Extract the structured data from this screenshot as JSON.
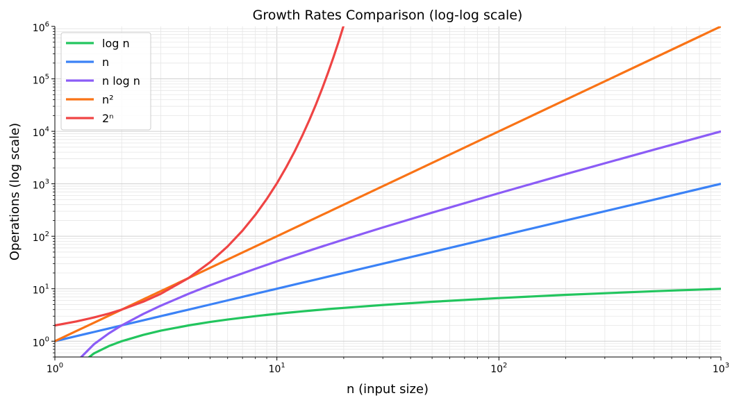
{
  "chart_data": {
    "type": "line",
    "title": "Growth Rates Comparison (log-log scale)",
    "xlabel": "n (input size)",
    "ylabel": "Operations (log scale)",
    "xscale": "log",
    "yscale": "log",
    "xlim": [
      1,
      1000
    ],
    "ylim": [
      0.5,
      1000000
    ],
    "grid": "major and minor",
    "legend_position": "top-left",
    "x_ticks": [
      {
        "base": "10",
        "exp": "0",
        "value": 1
      },
      {
        "base": "10",
        "exp": "1",
        "value": 10
      },
      {
        "base": "10",
        "exp": "2",
        "value": 100
      },
      {
        "base": "10",
        "exp": "3",
        "value": 1000
      }
    ],
    "y_ticks": [
      {
        "base": "10",
        "exp": "0",
        "value": 1
      },
      {
        "base": "10",
        "exp": "1",
        "value": 10
      },
      {
        "base": "10",
        "exp": "2",
        "value": 100
      },
      {
        "base": "10",
        "exp": "3",
        "value": 1000
      },
      {
        "base": "10",
        "exp": "4",
        "value": 10000
      },
      {
        "base": "10",
        "exp": "5",
        "value": 100000
      },
      {
        "base": "10",
        "exp": "6",
        "value": 1000000
      }
    ],
    "x": [
      1,
      1.25,
      1.5,
      1.75,
      2,
      2.5,
      3,
      4,
      5,
      6,
      7,
      8,
      9,
      10,
      11,
      12,
      13,
      14,
      15,
      16,
      17,
      18,
      19,
      20,
      30,
      50,
      100,
      200,
      500,
      1000
    ],
    "series": [
      {
        "name": "log n",
        "color": "#22c55e",
        "values": [
          null,
          0.322,
          0.585,
          0.807,
          1,
          1.32,
          1.585,
          2,
          2.32,
          2.585,
          2.807,
          3,
          3.17,
          3.32,
          3.46,
          3.585,
          3.7,
          3.81,
          3.91,
          4,
          4.09,
          4.17,
          4.25,
          4.32,
          4.91,
          5.64,
          6.64,
          7.64,
          8.97,
          9.97
        ]
      },
      {
        "name": "n",
        "color": "#3b82f6",
        "values": [
          1,
          1.25,
          1.5,
          1.75,
          2,
          2.5,
          3,
          4,
          5,
          6,
          7,
          8,
          9,
          10,
          11,
          12,
          13,
          14,
          15,
          16,
          17,
          18,
          19,
          20,
          30,
          50,
          100,
          200,
          500,
          1000
        ]
      },
      {
        "name": "n log n",
        "color": "#8b5cf6",
        "values": [
          null,
          0.403,
          0.877,
          1.41,
          2,
          3.3,
          4.75,
          8,
          11.6,
          15.5,
          19.65,
          24,
          28.5,
          33.2,
          38.1,
          43.0,
          48.1,
          53.3,
          58.6,
          64,
          69.5,
          75.1,
          80.7,
          86.4,
          147,
          282,
          664,
          1529,
          4483,
          9966
        ]
      },
      {
        "name": "n²",
        "color": "#f97316",
        "values": [
          1,
          1.5625,
          2.25,
          3.0625,
          4,
          6.25,
          9,
          16,
          25,
          36,
          49,
          64,
          81,
          100,
          121,
          144,
          169,
          196,
          225,
          256,
          289,
          324,
          361,
          400,
          900,
          2500,
          10000,
          40000,
          250000,
          1000000
        ]
      },
      {
        "name": "2ⁿ",
        "color": "#ef4444",
        "values": [
          2,
          2.38,
          2.83,
          3.36,
          4,
          5.66,
          8,
          16,
          32,
          64,
          128,
          256,
          512,
          1024,
          2048,
          4096,
          8192,
          16384,
          32768,
          65536,
          131072,
          262144,
          524288,
          1048576,
          null,
          null,
          null,
          null,
          null,
          null
        ]
      }
    ]
  }
}
